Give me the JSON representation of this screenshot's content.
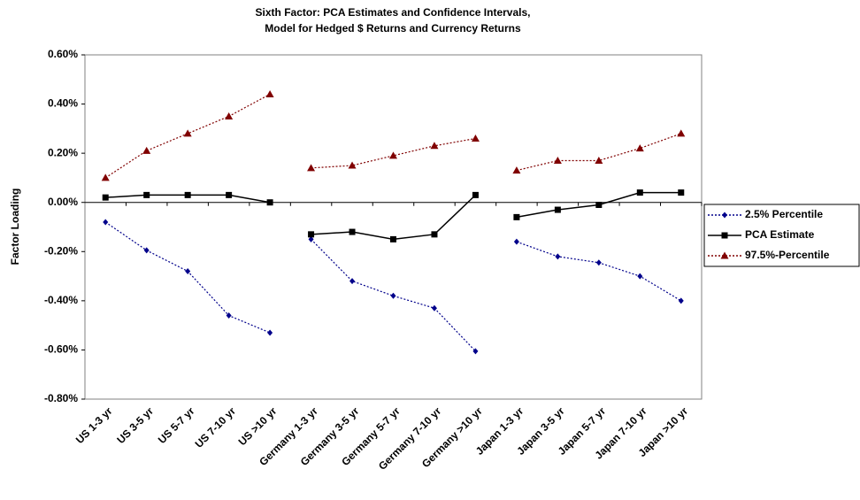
{
  "chart_data": {
    "type": "line",
    "title": [
      "Sixth Factor: PCA Estimates and Confidence Intervals,",
      "Model for Hedged $ Returns and Currency Returns"
    ],
    "y_label": "Factor Loading",
    "categories": [
      "US 1-3 yr",
      "US 3-5 yr",
      "US 5-7 yr",
      "US 7-10 yr",
      "US >10 yr",
      "Germany 1-3 yr",
      "Germany 3-5 yr",
      "Germany 5-7 yr",
      "Germany 7-10 yr",
      "Germany >10 yr",
      "Japan 1-3 yr",
      "Japan 3-5 yr",
      "Japan 5-7 yr",
      "Japan 7-10 yr",
      "Japan >10 yr"
    ],
    "line_breaks_after": [
      4,
      9
    ],
    "series": [
      {
        "name": "2.5% Percentile",
        "color": "#00008b",
        "dash": "dotted",
        "marker": "diamond",
        "values": [
          -0.08,
          -0.195,
          -0.28,
          -0.46,
          -0.53,
          -0.15,
          -0.32,
          -0.38,
          -0.43,
          -0.605,
          -0.16,
          -0.22,
          -0.245,
          -0.3,
          -0.4
        ]
      },
      {
        "name": "PCA Estimate",
        "color": "#000000",
        "dash": "solid",
        "marker": "square",
        "values": [
          0.02,
          0.03,
          0.03,
          0.03,
          0.0,
          -0.13,
          -0.12,
          -0.15,
          -0.13,
          0.03,
          -0.06,
          -0.03,
          -0.01,
          0.04,
          0.04
        ]
      },
      {
        "name": "97.5%-Percentile",
        "color": "#800000",
        "dash": "dotted",
        "marker": "triangle",
        "values": [
          0.1,
          0.21,
          0.28,
          0.35,
          0.44,
          0.14,
          0.15,
          0.19,
          0.23,
          0.26,
          0.13,
          0.17,
          0.17,
          0.22,
          0.28
        ]
      }
    ],
    "ylim": [
      -0.8,
      0.6
    ],
    "yticks": [
      {
        "value": -0.8,
        "label": "-0.80%"
      },
      {
        "value": -0.6,
        "label": "-0.60%"
      },
      {
        "value": -0.4,
        "label": "-0.40%"
      },
      {
        "value": -0.2,
        "label": "-0.20%"
      },
      {
        "value": 0,
        "label": "0.00%"
      },
      {
        "value": 0.2,
        "label": "0.20%"
      },
      {
        "value": 0.4,
        "label": "0.40%"
      },
      {
        "value": 0.6,
        "label": "0.60%"
      }
    ],
    "grid": false,
    "legend": "right"
  }
}
